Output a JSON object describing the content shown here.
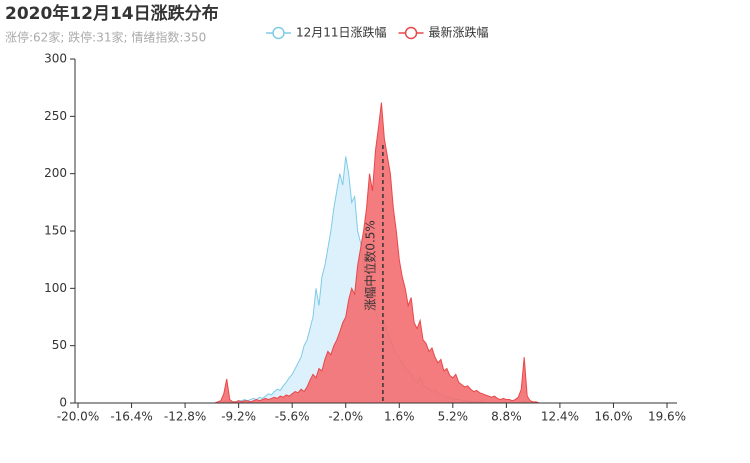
{
  "chart_data": {
    "type": "area",
    "title": "2020年12月14日涨跌分布",
    "subtitle": "涨停:62家; 跌停:31家; 情绪指数:350",
    "x": [
      -11,
      -10.8,
      -10.6,
      -10.4,
      -10.2,
      -10,
      -9.8,
      -9.6,
      -9.4,
      -9.2,
      -9,
      -8.8,
      -8.6,
      -8.4,
      -8.2,
      -8,
      -7.8,
      -7.6,
      -7.4,
      -7.2,
      -7,
      -6.8,
      -6.6,
      -6.4,
      -6.2,
      -6,
      -5.8,
      -5.6,
      -5.4,
      -5.2,
      -5,
      -4.8,
      -4.6,
      -4.4,
      -4.2,
      -4,
      -3.8,
      -3.6,
      -3.4,
      -3.2,
      -3,
      -2.8,
      -2.6,
      -2.4,
      -2.2,
      -2,
      -1.8,
      -1.6,
      -1.4,
      -1.2,
      -1,
      -0.8,
      -0.6,
      -0.4,
      -0.2,
      0,
      0.2,
      0.4,
      0.6,
      0.8,
      1,
      1.2,
      1.4,
      1.6,
      1.8,
      2,
      2.2,
      2.4,
      2.6,
      2.8,
      3,
      3.2,
      3.4,
      3.6,
      3.8,
      4,
      4.2,
      4.4,
      4.6,
      4.8,
      5,
      5.2,
      5.4,
      5.6,
      5.8,
      6,
      6.2,
      6.4,
      6.6,
      6.8,
      7,
      7.2,
      7.4,
      7.6,
      7.8,
      8,
      8.2,
      8.4,
      8.6,
      8.8,
      9,
      9.2,
      9.4,
      9.6,
      9.8,
      10,
      10.2,
      10.4,
      10.6,
      10.8,
      11
    ],
    "series": [
      {
        "name": "12月11日涨跌幅",
        "color": "#7ecbe6",
        "fill": "#dcf1fb",
        "values": [
          0,
          0,
          0,
          0,
          1,
          2,
          1,
          1,
          1,
          2,
          2,
          3,
          2,
          3,
          4,
          3,
          5,
          4,
          6,
          8,
          7,
          10,
          12,
          11,
          15,
          18,
          22,
          25,
          30,
          35,
          40,
          50,
          55,
          65,
          75,
          100,
          85,
          110,
          120,
          135,
          150,
          170,
          185,
          200,
          190,
          215,
          200,
          175,
          180,
          150,
          140,
          120,
          105,
          95,
          88,
          80,
          72,
          68,
          70,
          62,
          55,
          48,
          42,
          40,
          35,
          30,
          28,
          25,
          20,
          18,
          22,
          15,
          14,
          12,
          10,
          12,
          8,
          7,
          6,
          5,
          5,
          4,
          3,
          3,
          2,
          2,
          2,
          1,
          1,
          1,
          1,
          1,
          0,
          0,
          0,
          0,
          0,
          0,
          0,
          0,
          0,
          0,
          0,
          0,
          1,
          2,
          0,
          0,
          0,
          0,
          0
        ]
      },
      {
        "name": "最新涨跌幅",
        "color": "#e8474a",
        "fill": "#f36e70",
        "values": [
          0,
          0,
          1,
          2,
          8,
          21,
          3,
          1,
          1,
          2,
          1,
          2,
          2,
          1,
          2,
          3,
          2,
          3,
          4,
          3,
          4,
          5,
          4,
          6,
          5,
          7,
          6,
          8,
          10,
          9,
          12,
          10,
          14,
          20,
          25,
          22,
          30,
          28,
          38,
          45,
          42,
          50,
          55,
          62,
          70,
          75,
          90,
          100,
          95,
          120,
          135,
          150,
          170,
          200,
          185,
          220,
          240,
          262,
          230,
          215,
          200,
          170,
          150,
          125,
          110,
          100,
          85,
          92,
          70,
          65,
          72,
          55,
          52,
          45,
          48,
          40,
          35,
          38,
          28,
          30,
          24,
          22,
          25,
          18,
          16,
          14,
          15,
          12,
          10,
          11,
          9,
          8,
          7,
          6,
          5,
          6,
          4,
          3,
          4,
          3,
          3,
          2,
          3,
          5,
          12,
          40,
          6,
          2,
          1,
          1,
          0
        ]
      }
    ],
    "median": {
      "value": 0.5,
      "label": "涨幅中位数0.5%"
    },
    "xlim": [
      -20,
      19.6
    ],
    "xticks": [
      {
        "value": -20,
        "label": "-20.0%"
      },
      {
        "value": -16.4,
        "label": "-16.4%"
      },
      {
        "value": -12.8,
        "label": "-12.8%"
      },
      {
        "value": -9.2,
        "label": "-9.2%"
      },
      {
        "value": -5.6,
        "label": "-5.6%"
      },
      {
        "value": -2,
        "label": "-2.0%"
      },
      {
        "value": 1.6,
        "label": "1.6%"
      },
      {
        "value": 5.2,
        "label": "5.2%"
      },
      {
        "value": 8.8,
        "label": "8.8%"
      },
      {
        "value": 12.4,
        "label": "12.4%"
      },
      {
        "value": 16,
        "label": "16.0%"
      },
      {
        "value": 19.6,
        "label": "19.6%"
      }
    ],
    "ylim": [
      0,
      300
    ],
    "yticks": [
      0,
      50,
      100,
      150,
      200,
      250,
      300
    ],
    "grid": false
  }
}
